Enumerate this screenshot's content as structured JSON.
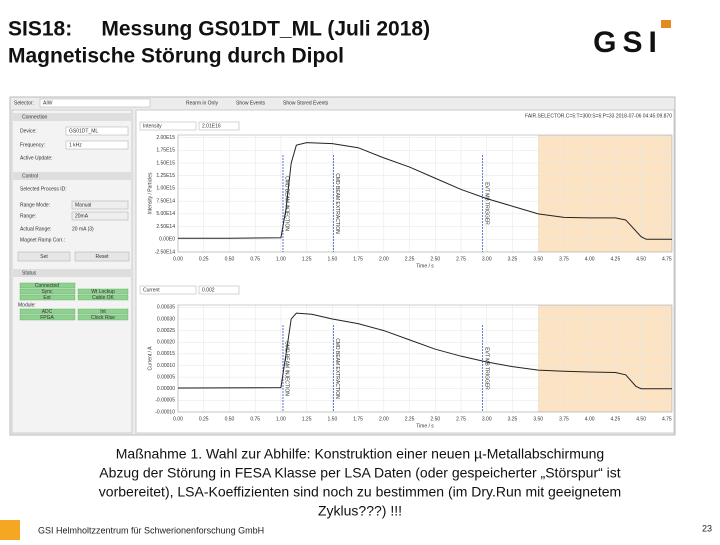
{
  "slide": {
    "title_line1": "SIS18:     Messung GS01DT_ML (Juli 2018)",
    "title_line2": "Magnetische Störung durch Dipol",
    "logo": "GSI",
    "caption": [
      "Maßnahme 1. Wahl zur Abhilfe: Konstruktion einer neuen µ-Metallabschirmung",
      "Abzug der Störung in FESA Klasse per LSA Daten (oder gespeicherter „Störspur“ ist",
      "vorbereitet), LSA-Koeffizienten sind noch zu bestimmen (im Dry.Run mit geeignetem",
      "Zyklus???) !!!"
    ],
    "footer": "GSI Helmholtzzentrum für Schwerionenforschung GmbH",
    "page": "23"
  },
  "panel": {
    "selector": "Selector:",
    "selector_value": "AIW",
    "toolbar": [
      "Rearm in Only",
      "Show Events",
      "Show Stored Events"
    ],
    "connection": "Connection",
    "device_label": "Device:",
    "device": "GS01DT_ML",
    "frequency_label": "Frequency:",
    "frequency": "1 kHz",
    "active_label": "Active Update:",
    "control": "Control",
    "pid_label": "Selected Process ID:",
    "range_mode_label": "Range Mode:",
    "range_mode": "Manual",
    "range_label": "Range:",
    "range": "20mA",
    "actual_label": "Actual Range:",
    "actual": "20 mA (3)",
    "ramp_label": "Magnet Ramp Corr.:",
    "set": "Set",
    "reset": "Reset",
    "status": "Status",
    "connected": "Connected",
    "sync": "Sync",
    "lockup": "Wt Lockup",
    "ext": "Ext",
    "cable": "Cable OK",
    "module": "Module:",
    "adc": "ADC",
    "int": "Int",
    "fpga": "FPGA",
    "clock": "Clock Rise"
  },
  "header": "FAIR.SELECTOR.C=5:T=300:S=6:P=33 2018-07-06 04:45:09.870",
  "chart_data": [
    {
      "type": "line",
      "field": "Intensity",
      "field_value": "2.01E16",
      "y_label": "Intensity / Particles",
      "x_label": "Time / s",
      "color": "#222222",
      "grid": true,
      "x": [
        0,
        0.5,
        1.0,
        1.05,
        1.1,
        1.15,
        1.25,
        1.5,
        1.75,
        2.0,
        2.25,
        2.5,
        2.75,
        3.0,
        3.25,
        3.5,
        3.75,
        4.0,
        4.25,
        4.35,
        4.5,
        4.55,
        4.8
      ],
      "values": [
        20000000000000.0,
        20000000000000.0,
        30000000000000.0,
        600000000000000.0,
        1500000000000000.0,
        1850000000000000.0,
        1900000000000000.0,
        1880000000000000.0,
        1800000000000000.0,
        1600000000000000.0,
        1420000000000000.0,
        1200000000000000.0,
        980000000000000.0,
        800000000000000.0,
        650000000000000.0,
        500000000000000.0,
        430000000000000.0,
        420000000000000.0,
        420000000000000.0,
        380000000000000.0,
        50000000000000.0,
        0,
        0
      ],
      "xlim": [
        0,
        4.8
      ],
      "ylim": [
        -250000000000000.0,
        2050000000000000.0
      ],
      "xticks": [
        {
          "value": 0,
          "label": "0.00"
        },
        {
          "value": 0.25,
          "label": "0.25"
        },
        {
          "value": 0.5,
          "label": "0.50"
        },
        {
          "value": 0.75,
          "label": "0.75"
        },
        {
          "value": 1,
          "label": "1.00"
        },
        {
          "value": 1.25,
          "label": "1.25"
        },
        {
          "value": 1.5,
          "label": "1.50"
        },
        {
          "value": 1.75,
          "label": "1.75"
        },
        {
          "value": 2,
          "label": "2.00"
        },
        {
          "value": 2.25,
          "label": "2.25"
        },
        {
          "value": 2.5,
          "label": "2.50"
        },
        {
          "value": 2.75,
          "label": "2.75"
        },
        {
          "value": 3,
          "label": "3.00"
        },
        {
          "value": 3.25,
          "label": "3.25"
        },
        {
          "value": 3.5,
          "label": "3.50"
        },
        {
          "value": 3.75,
          "label": "3.75"
        },
        {
          "value": 4,
          "label": "4.00"
        },
        {
          "value": 4.25,
          "label": "4.25"
        },
        {
          "value": 4.5,
          "label": "4.50"
        },
        {
          "value": 4.75,
          "label": "4.75"
        }
      ],
      "yticks": [
        {
          "value": 2000000000000000.0,
          "label": "2.00E15"
        },
        {
          "value": 1750000000000000.0,
          "label": "1.75E15"
        },
        {
          "value": 1500000000000000.0,
          "label": "1.50E15"
        },
        {
          "value": 1250000000000000.0,
          "label": "1.25E15"
        },
        {
          "value": 1000000000000000.0,
          "label": "1.00E15"
        },
        {
          "value": 750000000000000.0,
          "label": "7.50E14"
        },
        {
          "value": 500000000000000.0,
          "label": "5.00E14"
        },
        {
          "value": 250000000000000.0,
          "label": "2.50E14"
        },
        {
          "value": 0,
          "label": "0.00E0"
        },
        {
          "value": -250000000000000.0,
          "label": "-2.50E14"
        }
      ],
      "annotations": [
        {
          "text": "CMD BEAM INJECTION",
          "x": 1.02
        },
        {
          "text": "CMD BEAM EXTRACTION",
          "x": 1.51
        },
        {
          "text": "EVT MB TRIGGER",
          "x": 2.96
        }
      ],
      "highlight": [
        3.5,
        4.8
      ]
    },
    {
      "type": "line",
      "field": "Current",
      "field_value": "0.002",
      "y_label": "Current / A",
      "x_label": "Time / s",
      "color": "#222222",
      "grid": true,
      "x": [
        0,
        1.0,
        1.05,
        1.1,
        1.15,
        1.3,
        1.5,
        1.75,
        2.0,
        2.25,
        2.5,
        2.75,
        3.0,
        3.25,
        3.5,
        3.75,
        4.0,
        4.25,
        4.35,
        4.45,
        4.5,
        4.8
      ],
      "values": [
        3e-06,
        5e-06,
        0.00015,
        0.0003,
        0.000325,
        0.00032,
        0.0003,
        0.00028,
        0.00025,
        0.00021,
        0.00017,
        0.00014,
        0.000115,
        9.5e-05,
        8e-05,
        7.5e-05,
        7.2e-05,
        7e-05,
        6e-05,
        1e-05,
        0,
        0
      ],
      "xlim": [
        0,
        4.8
      ],
      "ylim": [
        -0.0001,
        0.00036
      ],
      "xticks": [
        {
          "value": 0,
          "label": "0.00"
        },
        {
          "value": 0.25,
          "label": "0.25"
        },
        {
          "value": 0.5,
          "label": "0.50"
        },
        {
          "value": 0.75,
          "label": "0.75"
        },
        {
          "value": 1,
          "label": "1.00"
        },
        {
          "value": 1.25,
          "label": "1.25"
        },
        {
          "value": 1.5,
          "label": "1.50"
        },
        {
          "value": 1.75,
          "label": "1.75"
        },
        {
          "value": 2,
          "label": "2.00"
        },
        {
          "value": 2.25,
          "label": "2.25"
        },
        {
          "value": 2.5,
          "label": "2.50"
        },
        {
          "value": 2.75,
          "label": "2.75"
        },
        {
          "value": 3,
          "label": "3.00"
        },
        {
          "value": 3.25,
          "label": "3.25"
        },
        {
          "value": 3.5,
          "label": "3.50"
        },
        {
          "value": 3.75,
          "label": "3.75"
        },
        {
          "value": 4,
          "label": "4.00"
        },
        {
          "value": 4.25,
          "label": "4.25"
        },
        {
          "value": 4.5,
          "label": "4.50"
        },
        {
          "value": 4.75,
          "label": "4.75"
        }
      ],
      "yticks": [
        {
          "value": 0.00035,
          "label": "0.00035"
        },
        {
          "value": 0.0003,
          "label": "0.00030"
        },
        {
          "value": 0.00025,
          "label": "0.00025"
        },
        {
          "value": 0.0002,
          "label": "0.00020"
        },
        {
          "value": 0.00015,
          "label": "0.00015"
        },
        {
          "value": 0.0001,
          "label": "0.00010"
        },
        {
          "value": 5e-05,
          "label": "0.00005"
        },
        {
          "value": 0,
          "label": "0.00000"
        },
        {
          "value": -5e-05,
          "label": "-0.00005"
        },
        {
          "value": -0.0001,
          "label": "-0.00010"
        }
      ],
      "annotations": [
        {
          "text": "CMD BEAM INJECTION",
          "x": 1.02
        },
        {
          "text": "CMD BEAM EXTRACTION",
          "x": 1.51
        },
        {
          "text": "EVT MB TRIGGER",
          "x": 2.96
        }
      ],
      "highlight": [
        3.5,
        4.8
      ]
    }
  ]
}
